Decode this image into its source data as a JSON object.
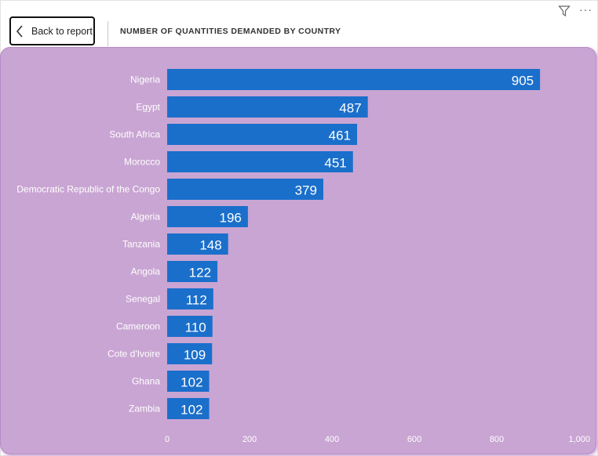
{
  "header": {
    "back_label": "Back to report",
    "title": "NUMBER OF QUANTITIES DEMANDED BY COUNTRY"
  },
  "icons": {
    "back": "chevron-left-icon",
    "filter": "filter-icon",
    "more": "more-options-icon"
  },
  "colors": {
    "bar": "#1a6fcb",
    "card_bg": "#c9a5d3",
    "text": "#ffffff"
  },
  "chart_data": {
    "type": "bar",
    "orientation": "horizontal",
    "title": "NUMBER OF QUANTITIES DEMANDED BY COUNTRY",
    "categories": [
      "Nigeria",
      "Egypt",
      "South Africa",
      "Morocco",
      "Democratic Republic of the Congo",
      "Algeria",
      "Tanzania",
      "Angola",
      "Senegal",
      "Cameroon",
      "Cote d'Ivoire",
      "Ghana",
      "Zambia"
    ],
    "values": [
      905,
      487,
      461,
      451,
      379,
      196,
      148,
      122,
      112,
      110,
      109,
      102,
      102
    ],
    "xlim": [
      0,
      1000
    ],
    "x_ticks": [
      0,
      200,
      400,
      600,
      800,
      1000
    ],
    "x_tick_labels": [
      "0",
      "200",
      "400",
      "600",
      "800",
      "1,000"
    ],
    "data_labels": true,
    "grid": false,
    "legend": "none"
  }
}
